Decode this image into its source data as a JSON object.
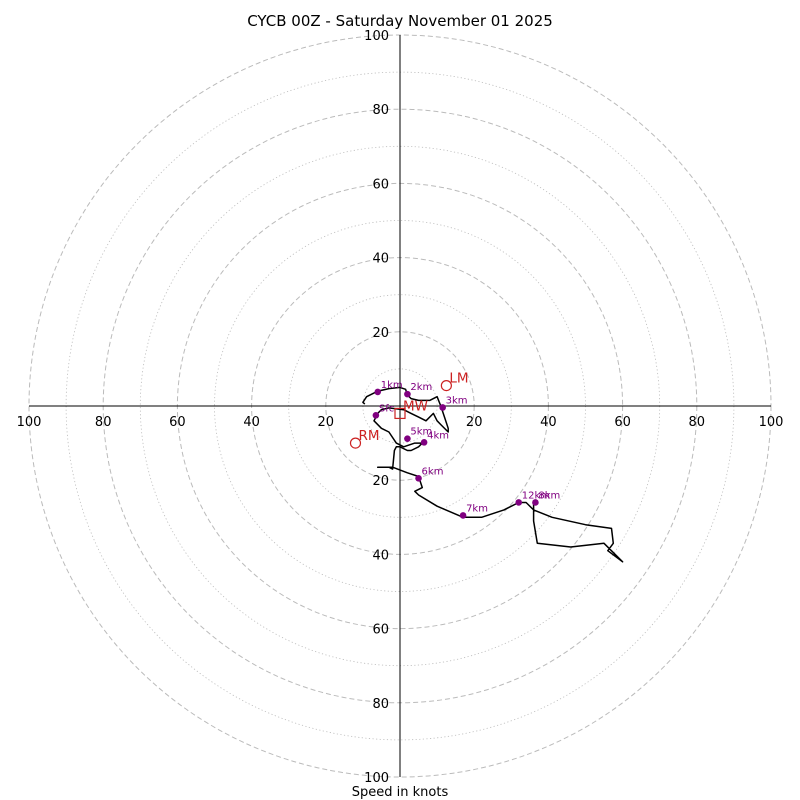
{
  "chart_data": {
    "type": "hodograph",
    "title": "CYCB 00Z - Saturday November 01 2025",
    "xlabel": "Speed in knots",
    "max_speed": 100,
    "ring_step": 10,
    "tick_labels": {
      "right": [
        "20",
        "40",
        "60",
        "80",
        "100"
      ],
      "left": [
        "100",
        "80",
        "60",
        "40",
        "20"
      ],
      "up": [
        "20",
        "40",
        "60",
        "80",
        "100"
      ],
      "down": [
        "20",
        "40",
        "60",
        "80",
        "100"
      ]
    },
    "colors": {
      "ring": "#bbbbbb",
      "trace": "#000000",
      "marker": "#800080",
      "motion": "#cc2222"
    },
    "trace_uv": [
      [
        -9.5,
        0.5
      ],
      [
        -10,
        1
      ],
      [
        -9,
        2.5
      ],
      [
        -6,
        4
      ],
      [
        -3,
        4.7
      ],
      [
        0,
        5
      ],
      [
        1.5,
        4.5
      ],
      [
        2,
        3
      ],
      [
        3,
        2
      ],
      [
        5,
        1.5
      ],
      [
        8,
        1.5
      ],
      [
        10,
        2.5
      ],
      [
        11,
        0
      ],
      [
        12,
        -3
      ],
      [
        13,
        -6
      ],
      [
        13,
        -7
      ],
      [
        11,
        -5
      ],
      [
        10,
        -4
      ],
      [
        9,
        -2
      ],
      [
        7,
        -4
      ],
      [
        5,
        -3
      ],
      [
        3,
        -2
      ],
      [
        1,
        -1
      ],
      [
        -3,
        -0.5
      ],
      [
        -5,
        -1
      ],
      [
        -6,
        -2
      ],
      [
        -6.5,
        -3
      ],
      [
        -7,
        -4
      ],
      [
        -5,
        -6
      ],
      [
        -3,
        -7
      ],
      [
        -1,
        -10
      ],
      [
        1,
        -11
      ],
      [
        4,
        -10
      ],
      [
        6,
        -10
      ],
      [
        5,
        -11
      ],
      [
        3,
        -12
      ],
      [
        2,
        -12
      ],
      [
        0,
        -11
      ],
      [
        -1,
        -11
      ],
      [
        -1.5,
        -12
      ],
      [
        -2,
        -17
      ],
      [
        -3,
        -16.5
      ],
      [
        -6,
        -16.5
      ],
      [
        -2,
        -16.5
      ],
      [
        2,
        -18
      ],
      [
        5,
        -19
      ],
      [
        6,
        -22
      ],
      [
        4,
        -23
      ],
      [
        5,
        -24
      ],
      [
        10,
        -27
      ],
      [
        17,
        -30
      ],
      [
        22,
        -30
      ],
      [
        28,
        -28
      ],
      [
        32,
        -26
      ],
      [
        34,
        -26
      ],
      [
        36,
        -28
      ],
      [
        41,
        -30
      ],
      [
        50,
        -32
      ],
      [
        57,
        -33
      ],
      [
        57.5,
        -37
      ],
      [
        56,
        -39
      ],
      [
        60,
        -42
      ],
      [
        55,
        -37
      ],
      [
        46,
        -38
      ],
      [
        37,
        -37
      ],
      [
        36,
        -31
      ],
      [
        36,
        -26
      ]
    ],
    "heights": [
      {
        "label": "Sfc",
        "u": -6.5,
        "v": -2.5
      },
      {
        "label": "1km",
        "u": -6,
        "v": 3.8
      },
      {
        "label": "2km",
        "u": 2,
        "v": 3.2
      },
      {
        "label": "3km",
        "u": 11.5,
        "v": -0.4
      },
      {
        "label": "4km",
        "u": 6.5,
        "v": -9.8
      },
      {
        "label": "5km",
        "u": 2,
        "v": -8.8
      },
      {
        "label": "6km",
        "u": 5,
        "v": -19.5
      },
      {
        "label": "7km",
        "u": 17,
        "v": -29.5
      },
      {
        "label": "8km",
        "u": 36.5,
        "v": -26
      },
      {
        "label": "12km",
        "u": 32,
        "v": -26
      }
    ],
    "storm_motion": [
      {
        "label": "LM",
        "u": 12.5,
        "v": 5.5,
        "shape": "circle"
      },
      {
        "label": "RM",
        "u": -12,
        "v": -10,
        "shape": "circle"
      },
      {
        "label": "MW",
        "u": 0,
        "v": -2,
        "shape": "square"
      }
    ]
  }
}
